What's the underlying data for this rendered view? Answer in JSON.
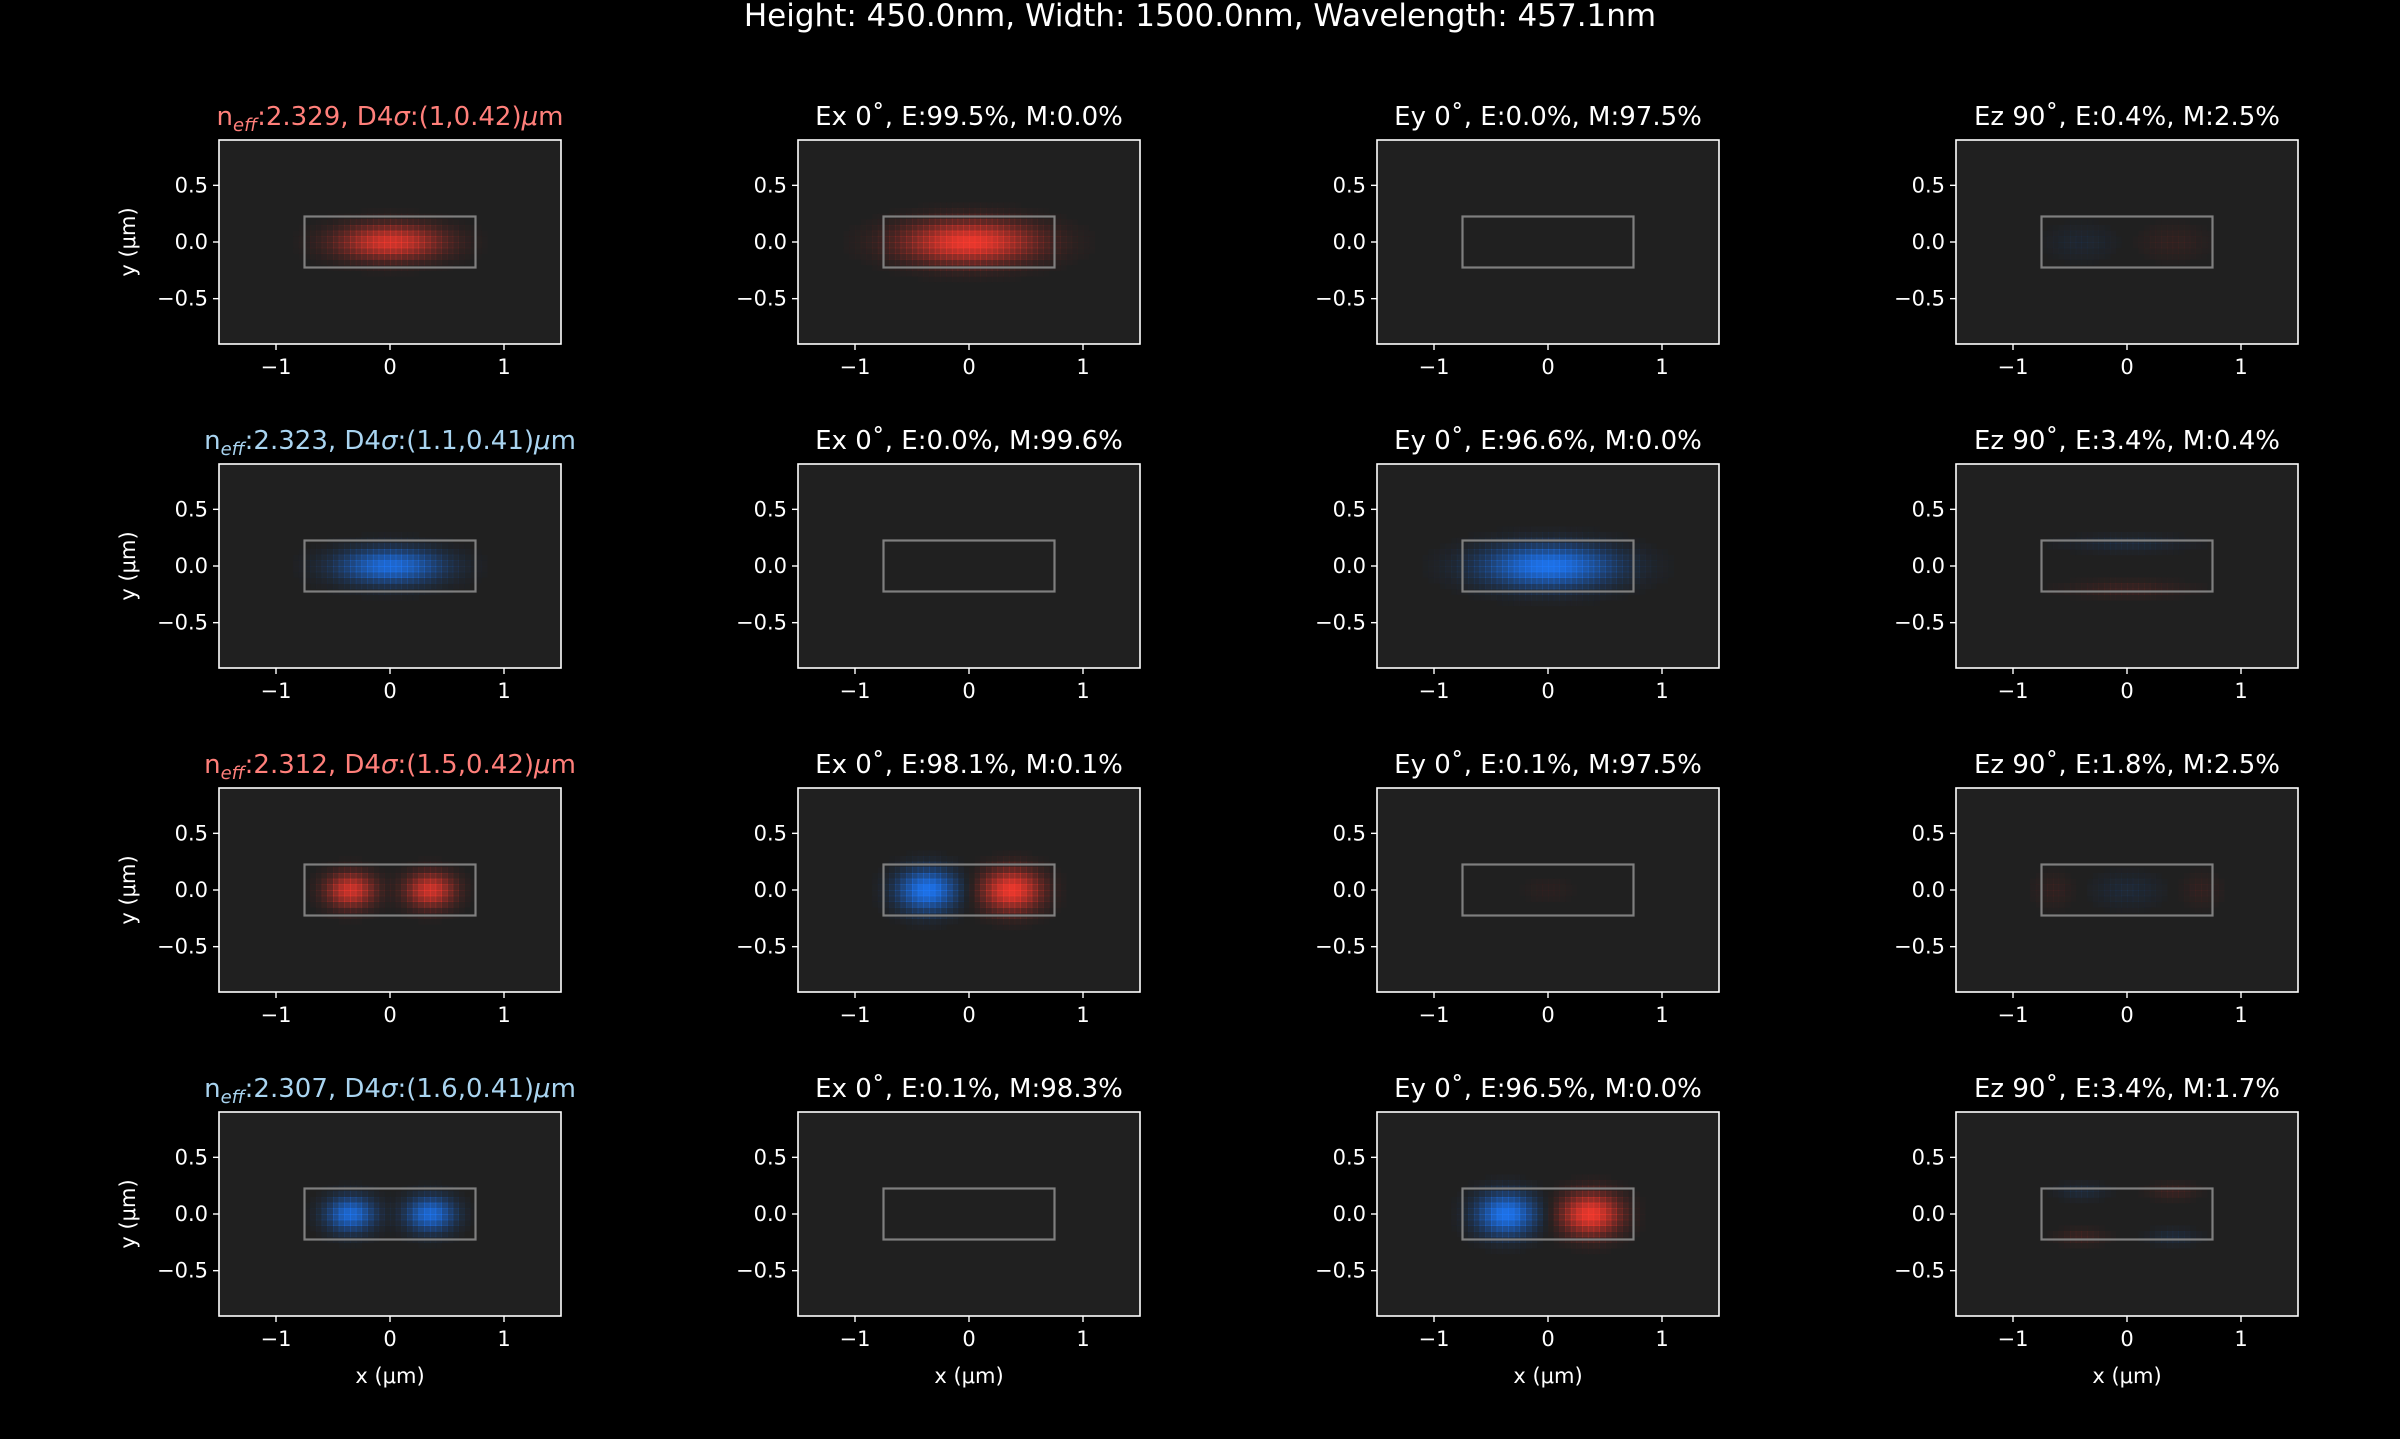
{
  "figure": {
    "title": "Height: 450.0nm, Width: 1500.0nm, Wavelength: 457.1nm",
    "background": "#000000",
    "axes_facecolor": "#202020",
    "spine_color": "#ffffff",
    "outline_color": "#7f7f7f",
    "text_color": "#ffffff",
    "positive_color": "#ff3b2f",
    "negative_color": "#1e7bff",
    "te_title_color": "#ff7f7a",
    "tm_title_color": "#a9d4f0"
  },
  "chart_data": {
    "type": "heatmap",
    "grid": false,
    "layout": "4 rows x 4 columns of mode field panels",
    "xlabel": "x (μm)",
    "ylabel": "y (μm)",
    "xlim": [
      -1.5,
      1.5
    ],
    "ylim": [
      -0.9,
      0.9
    ],
    "xticks": [
      {
        "v": -1,
        "label": "−1"
      },
      {
        "v": 0,
        "label": "0"
      },
      {
        "v": 1,
        "label": "1"
      }
    ],
    "yticks": [
      {
        "v": 0.5,
        "label": "0.5"
      },
      {
        "v": 0,
        "label": "0.0"
      },
      {
        "v": -0.5,
        "label": "−0.5"
      }
    ],
    "waveguide_core": {
      "x": [
        -0.75,
        0.75
      ],
      "y": [
        -0.225,
        0.225
      ]
    },
    "modes": [
      {
        "polarization": "TE",
        "neff": "2.329",
        "d4sigma": "(1,0.42)",
        "panels": [
          {
            "title": "",
            "lobes": [
              {
                "x": 0,
                "y": 0,
                "sx": 0.3,
                "sy": 0.1,
                "amp": 0.78
              }
            ]
          },
          {
            "title": "Ex 0˚, E:99.5%, M:0.0%",
            "lobes": [
              {
                "x": 0,
                "y": 0,
                "sx": 0.38,
                "sy": 0.12,
                "amp": 0.9
              }
            ]
          },
          {
            "title": "Ey 0˚, E:0.0%, M:97.5%",
            "lobes": []
          },
          {
            "title": "Ez 90˚, E:0.4%, M:2.5%",
            "lobes": [
              {
                "x": -0.4,
                "y": 0,
                "sx": 0.2,
                "sy": 0.1,
                "amp": -0.07
              },
              {
                "x": 0.4,
                "y": 0,
                "sx": 0.2,
                "sy": 0.1,
                "amp": 0.07
              }
            ]
          }
        ]
      },
      {
        "polarization": "TM",
        "neff": "2.323",
        "d4sigma": "(1.1,0.41)",
        "panels": [
          {
            "title": "",
            "lobes": [
              {
                "x": 0,
                "y": 0,
                "sx": 0.3,
                "sy": 0.1,
                "amp": -0.8
              }
            ]
          },
          {
            "title": "Ex 0˚, E:0.0%, M:99.6%",
            "lobes": []
          },
          {
            "title": "Ey 0˚, E:96.6%, M:0.0%",
            "lobes": [
              {
                "x": 0,
                "y": 0,
                "sx": 0.38,
                "sy": 0.12,
                "amp": -0.9
              }
            ]
          },
          {
            "title": "Ez 90˚, E:3.4%, M:0.4%",
            "lobes": [
              {
                "x": 0,
                "y": 0.2,
                "sx": 0.35,
                "sy": 0.05,
                "amp": -0.1
              },
              {
                "x": 0,
                "y": -0.2,
                "sx": 0.35,
                "sy": 0.05,
                "amp": 0.1
              }
            ]
          }
        ]
      },
      {
        "polarization": "TE",
        "neff": "2.312",
        "d4sigma": "(1.5,0.42)",
        "panels": [
          {
            "title": "",
            "lobes": [
              {
                "x": -0.35,
                "y": 0,
                "sx": 0.14,
                "sy": 0.1,
                "amp": 0.75
              },
              {
                "x": 0.35,
                "y": 0,
                "sx": 0.14,
                "sy": 0.1,
                "amp": 0.75
              }
            ]
          },
          {
            "title": "Ex 0˚, E:98.1%, M:0.1%",
            "lobes": [
              {
                "x": -0.37,
                "y": 0,
                "sx": 0.17,
                "sy": 0.12,
                "amp": -0.9
              },
              {
                "x": 0.37,
                "y": 0,
                "sx": 0.17,
                "sy": 0.12,
                "amp": 0.9
              }
            ]
          },
          {
            "title": "Ey 0˚, E:0.1%, M:97.5%",
            "lobes": [
              {
                "x": 0,
                "y": 0,
                "sx": 0.15,
                "sy": 0.08,
                "amp": 0.04
              }
            ]
          },
          {
            "title": "Ez 90˚, E:1.8%, M:2.5%",
            "lobes": [
              {
                "x": -0.65,
                "y": 0,
                "sx": 0.12,
                "sy": 0.1,
                "amp": 0.07
              },
              {
                "x": 0,
                "y": 0,
                "sx": 0.2,
                "sy": 0.1,
                "amp": -0.09
              },
              {
                "x": 0.65,
                "y": 0,
                "sx": 0.12,
                "sy": 0.1,
                "amp": 0.07
              }
            ]
          }
        ]
      },
      {
        "polarization": "TM",
        "neff": "2.307",
        "d4sigma": "(1.6,0.41)",
        "panels": [
          {
            "title": "",
            "lobes": [
              {
                "x": -0.35,
                "y": 0,
                "sx": 0.14,
                "sy": 0.1,
                "amp": -0.78
              },
              {
                "x": 0.35,
                "y": 0,
                "sx": 0.14,
                "sy": 0.1,
                "amp": -0.78
              }
            ]
          },
          {
            "title": "Ex 0˚, E:0.1%, M:98.3%",
            "lobes": []
          },
          {
            "title": "Ey 0˚, E:96.5%, M:0.0%",
            "lobes": [
              {
                "x": -0.37,
                "y": 0,
                "sx": 0.17,
                "sy": 0.12,
                "amp": -0.9
              },
              {
                "x": 0.37,
                "y": 0,
                "sx": 0.17,
                "sy": 0.12,
                "amp": 0.9
              }
            ]
          },
          {
            "title": "Ez 90˚, E:3.4%, M:1.7%",
            "lobes": [
              {
                "x": -0.4,
                "y": 0.2,
                "sx": 0.15,
                "sy": 0.05,
                "amp": -0.1
              },
              {
                "x": 0.4,
                "y": 0.2,
                "sx": 0.15,
                "sy": 0.05,
                "amp": 0.1
              },
              {
                "x": -0.4,
                "y": -0.2,
                "sx": 0.15,
                "sy": 0.05,
                "amp": 0.1
              },
              {
                "x": 0.4,
                "y": -0.2,
                "sx": 0.15,
                "sy": 0.05,
                "amp": -0.1
              }
            ]
          }
        ]
      }
    ]
  }
}
